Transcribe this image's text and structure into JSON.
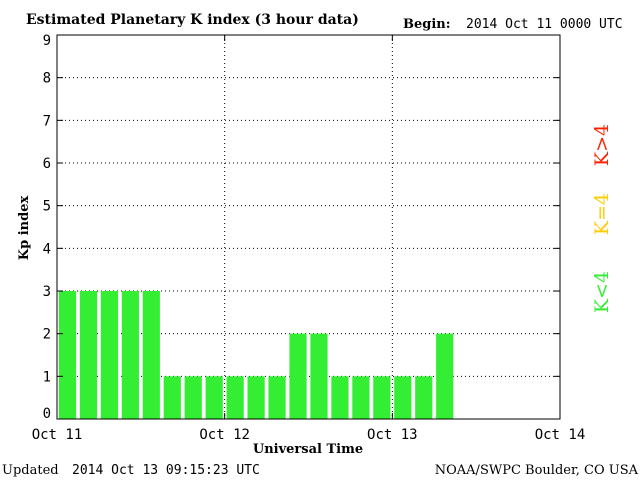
{
  "header": {
    "title": "Estimated Planetary K index (3 hour data)",
    "begin_label": "Begin:",
    "begin_value": "2014 Oct 11 0000 UTC"
  },
  "footer": {
    "updated_label": "Updated",
    "updated_value": "2014 Oct 13 09:15:23 UTC",
    "source": "NOAA/SWPC Boulder, CO USA"
  },
  "legend": [
    {
      "label": "K<4",
      "color": "#33ee33"
    },
    {
      "label": "K=4",
      "color": "#ffcc00"
    },
    {
      "label": "K>4",
      "color": "#ff2200"
    }
  ],
  "chart_data": {
    "type": "bar",
    "title": "Estimated Planetary K index (3 hour data)",
    "xlabel": "Universal Time",
    "ylabel": "Kp index",
    "ylim": [
      0,
      9
    ],
    "yticks": [
      "0",
      "1",
      "2",
      "3",
      "4",
      "5",
      "6",
      "7",
      "8",
      "9"
    ],
    "xlim_days": [
      0,
      3
    ],
    "xtick_labels": [
      "Oct 11",
      "Oct 12",
      "Oct 13",
      "Oct 14"
    ],
    "interval_hours": 3,
    "grid": true,
    "bar_color": "#33ee33",
    "values": [
      3,
      3,
      3,
      3,
      3,
      1,
      1,
      1,
      1,
      1,
      1,
      2,
      2,
      1,
      1,
      1,
      1,
      1,
      2
    ]
  }
}
